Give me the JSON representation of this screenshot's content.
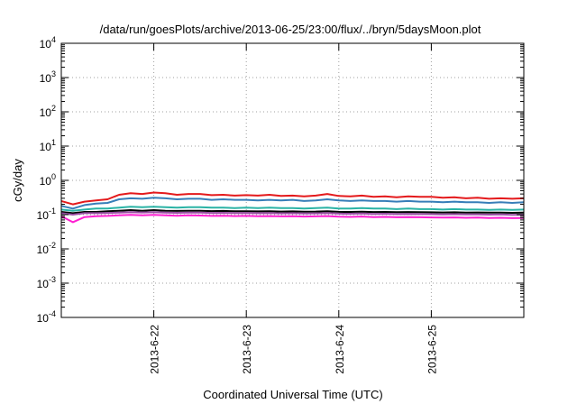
{
  "chart_data": {
    "type": "line",
    "title": "/data/run/goesPlots/archive/2013-06-25/23:00/flux/../bryn/5daysMoon.plot",
    "xlabel": "Coordinated Universal Time (UTC)",
    "ylabel": "cGy/day",
    "yscale": "log",
    "ylim": [
      0.0001,
      10000
    ],
    "y_ticks": [
      {
        "base": "10",
        "exp": "-4",
        "value": 0.0001
      },
      {
        "base": "10",
        "exp": "-3",
        "value": 0.001
      },
      {
        "base": "10",
        "exp": "-2",
        "value": 0.01
      },
      {
        "base": "10",
        "exp": "-1",
        "value": 0.1
      },
      {
        "base": "10",
        "exp": "0",
        "value": 1
      },
      {
        "base": "10",
        "exp": "1",
        "value": 10
      },
      {
        "base": "10",
        "exp": "2",
        "value": 100
      },
      {
        "base": "10",
        "exp": "3",
        "value": 1000
      },
      {
        "base": "10",
        "exp": "4",
        "value": 10000
      }
    ],
    "xlim": [
      "2013-06-21T00:00",
      "2013-06-26T00:00"
    ],
    "x_ticks": [
      {
        "label": "2013-6-22",
        "value": "2013-06-22T00:00"
      },
      {
        "label": "2013-6-23",
        "value": "2013-06-23T00:00"
      },
      {
        "label": "2013-6-24",
        "value": "2013-06-24T00:00"
      },
      {
        "label": "2013-6-25",
        "value": "2013-06-25T00:00"
      }
    ],
    "grid": true,
    "x": [
      "2013-06-21T00:00",
      "2013-06-21T03:00",
      "2013-06-21T06:00",
      "2013-06-21T09:00",
      "2013-06-21T12:00",
      "2013-06-21T15:00",
      "2013-06-21T18:00",
      "2013-06-21T21:00",
      "2013-06-22T00:00",
      "2013-06-22T03:00",
      "2013-06-22T06:00",
      "2013-06-22T09:00",
      "2013-06-22T12:00",
      "2013-06-22T15:00",
      "2013-06-22T18:00",
      "2013-06-22T21:00",
      "2013-06-23T00:00",
      "2013-06-23T03:00",
      "2013-06-23T06:00",
      "2013-06-23T09:00",
      "2013-06-23T12:00",
      "2013-06-23T15:00",
      "2013-06-23T18:00",
      "2013-06-23T21:00",
      "2013-06-24T00:00",
      "2013-06-24T03:00",
      "2013-06-24T06:00",
      "2013-06-24T09:00",
      "2013-06-24T12:00",
      "2013-06-24T15:00",
      "2013-06-24T18:00",
      "2013-06-24T21:00",
      "2013-06-25T00:00",
      "2013-06-25T03:00",
      "2013-06-25T06:00",
      "2013-06-25T09:00",
      "2013-06-25T12:00",
      "2013-06-25T15:00",
      "2013-06-25T18:00",
      "2013-06-25T21:00",
      "2013-06-26T00:00"
    ],
    "series": [
      {
        "color": "#e41a1c",
        "values": [
          0.25,
          0.2,
          0.24,
          0.26,
          0.28,
          0.38,
          0.42,
          0.4,
          0.44,
          0.42,
          0.38,
          0.4,
          0.4,
          0.37,
          0.38,
          0.36,
          0.37,
          0.36,
          0.38,
          0.35,
          0.36,
          0.34,
          0.36,
          0.4,
          0.35,
          0.34,
          0.36,
          0.33,
          0.34,
          0.32,
          0.34,
          0.33,
          0.33,
          0.31,
          0.32,
          0.3,
          0.31,
          0.29,
          0.3,
          0.29,
          0.3
        ]
      },
      {
        "color": "#377eb8",
        "values": [
          0.18,
          0.15,
          0.19,
          0.21,
          0.22,
          0.28,
          0.3,
          0.29,
          0.31,
          0.3,
          0.28,
          0.29,
          0.29,
          0.27,
          0.28,
          0.27,
          0.27,
          0.26,
          0.27,
          0.26,
          0.27,
          0.25,
          0.26,
          0.28,
          0.26,
          0.25,
          0.26,
          0.25,
          0.25,
          0.24,
          0.25,
          0.24,
          0.24,
          0.23,
          0.24,
          0.23,
          0.23,
          0.22,
          0.23,
          0.22,
          0.23
        ]
      },
      {
        "color": "#2ab3a5",
        "values": [
          0.14,
          0.13,
          0.14,
          0.15,
          0.15,
          0.16,
          0.17,
          0.165,
          0.17,
          0.165,
          0.16,
          0.165,
          0.165,
          0.16,
          0.16,
          0.155,
          0.16,
          0.155,
          0.16,
          0.155,
          0.155,
          0.15,
          0.155,
          0.16,
          0.15,
          0.15,
          0.155,
          0.15,
          0.15,
          0.145,
          0.15,
          0.145,
          0.145,
          0.14,
          0.145,
          0.14,
          0.14,
          0.138,
          0.14,
          0.138,
          0.14
        ]
      },
      {
        "color": "#000000",
        "values": [
          0.12,
          0.11,
          0.12,
          0.12,
          0.125,
          0.13,
          0.135,
          0.13,
          0.135,
          0.13,
          0.128,
          0.13,
          0.13,
          0.127,
          0.128,
          0.125,
          0.126,
          0.124,
          0.126,
          0.123,
          0.124,
          0.122,
          0.123,
          0.126,
          0.121,
          0.12,
          0.122,
          0.119,
          0.12,
          0.118,
          0.119,
          0.118,
          0.117,
          0.116,
          0.117,
          0.115,
          0.116,
          0.114,
          0.115,
          0.113,
          0.114
        ]
      },
      {
        "color": "#984ea3",
        "values": [
          0.11,
          0.1,
          0.11,
          0.11,
          0.112,
          0.115,
          0.118,
          0.116,
          0.118,
          0.115,
          0.113,
          0.115,
          0.114,
          0.112,
          0.113,
          0.111,
          0.112,
          0.11,
          0.111,
          0.109,
          0.11,
          0.108,
          0.109,
          0.111,
          0.107,
          0.106,
          0.108,
          0.105,
          0.106,
          0.104,
          0.105,
          0.104,
          0.103,
          0.102,
          0.103,
          0.101,
          0.102,
          0.1,
          0.101,
          0.099,
          0.1
        ]
      },
      {
        "color": "#ff1fd2",
        "values": [
          0.09,
          0.06,
          0.085,
          0.09,
          0.092,
          0.095,
          0.098,
          0.096,
          0.098,
          0.095,
          0.093,
          0.095,
          0.094,
          0.092,
          0.093,
          0.091,
          0.092,
          0.09,
          0.091,
          0.089,
          0.09,
          0.088,
          0.089,
          0.091,
          0.087,
          0.086,
          0.088,
          0.085,
          0.086,
          0.084,
          0.085,
          0.084,
          0.083,
          0.082,
          0.083,
          0.081,
          0.082,
          0.08,
          0.081,
          0.079,
          0.08
        ]
      }
    ]
  }
}
